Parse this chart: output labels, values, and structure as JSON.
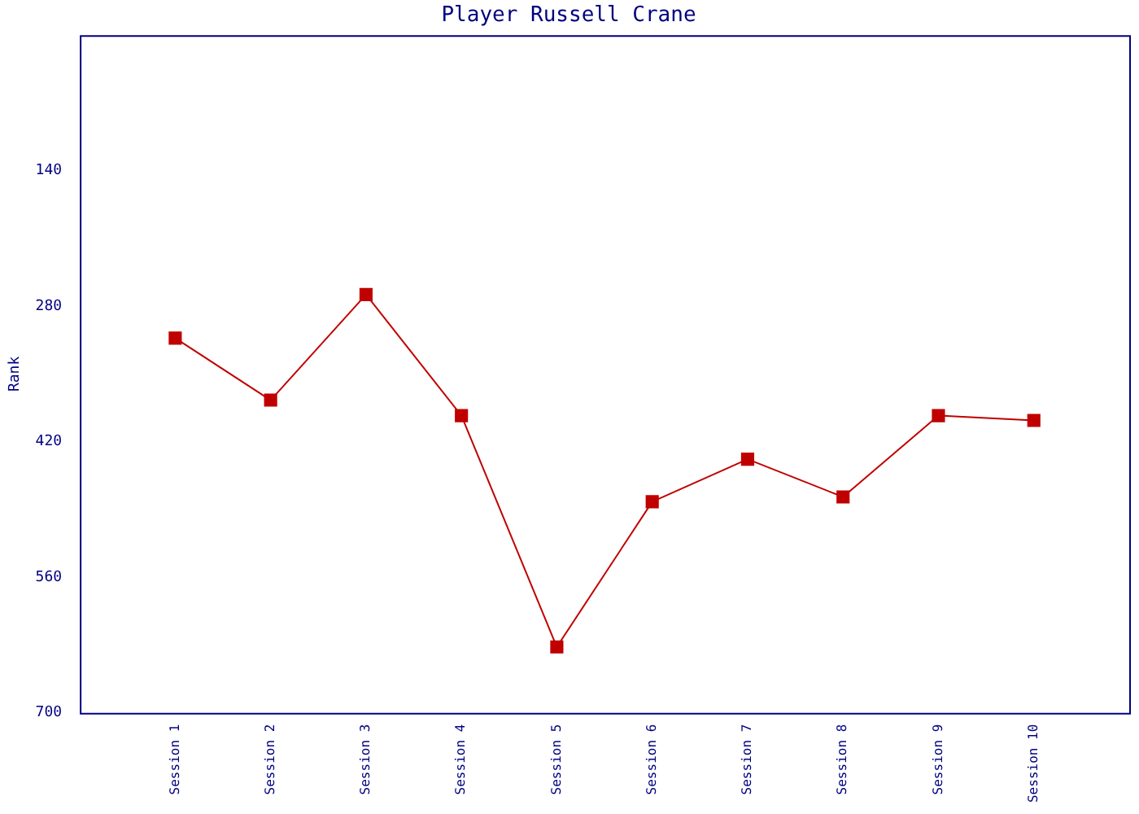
{
  "chart_data": {
    "type": "line",
    "title": "Player Russell Crane",
    "ylabel": "Rank",
    "categories": [
      "Session 1",
      "Session 2",
      "Session 3",
      "Session 4",
      "Session 5",
      "Session 6",
      "Session 7",
      "Session 8",
      "Session 9",
      "Session 10"
    ],
    "series": [
      {
        "color": "#c00000",
        "values": [
          313,
          377,
          268,
          393,
          632,
          482,
          438,
          477,
          393,
          398
        ]
      }
    ],
    "ylim": [
      700,
      0
    ],
    "yticks": [
      140,
      280,
      420,
      560,
      700
    ],
    "grid": false,
    "legend": false,
    "marker": "square",
    "line_style": "solid"
  }
}
